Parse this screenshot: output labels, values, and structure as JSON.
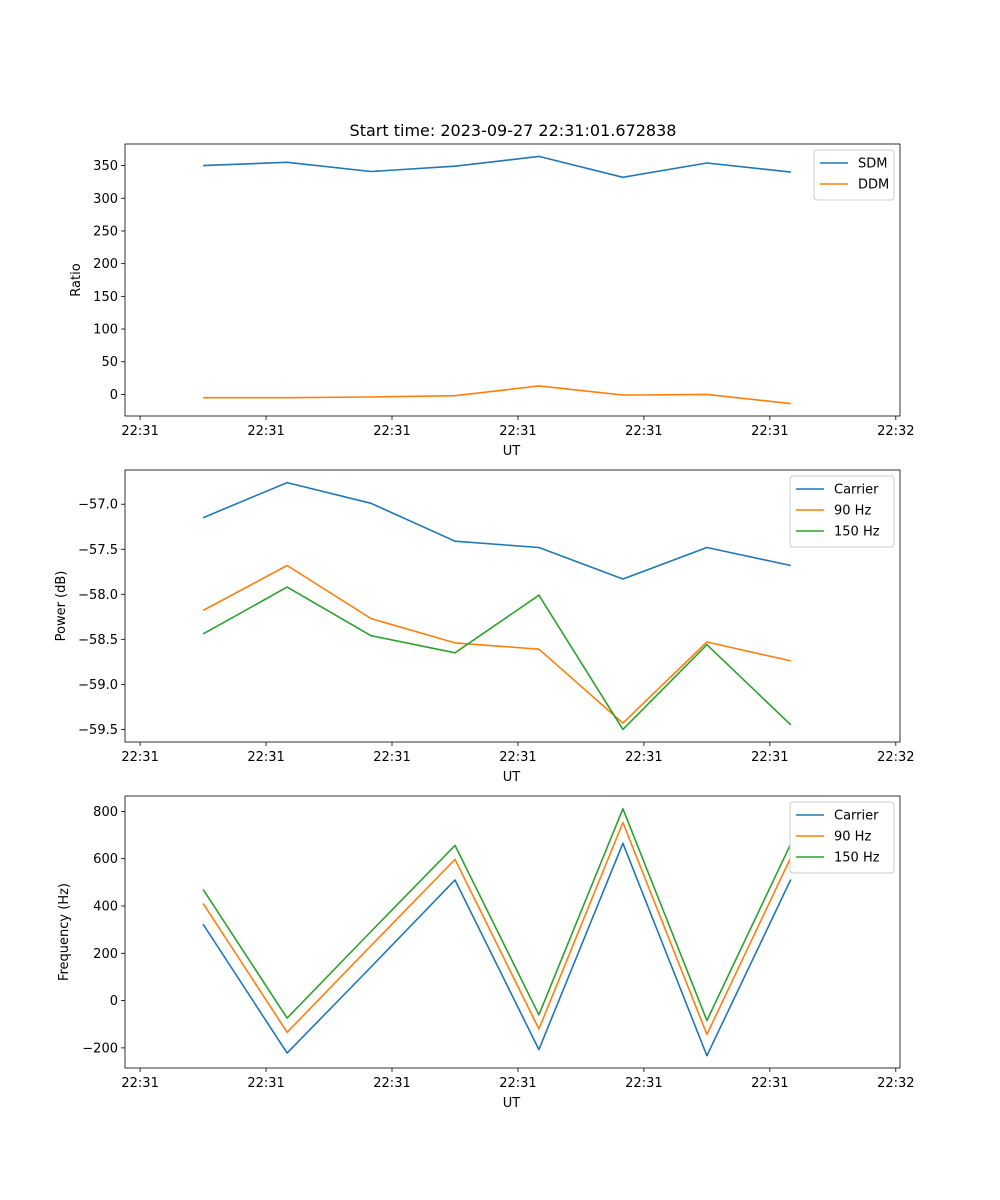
{
  "title": "Start time: 2023-09-27 22:31:01.672838",
  "colors": {
    "blue": "#1f77b4",
    "orange": "#ff7f0e",
    "green": "#2ca02c"
  },
  "chart_data": [
    {
      "type": "line",
      "ylabel": "Ratio",
      "xlabel": "UT",
      "x": [
        1,
        2,
        3,
        4,
        5,
        6,
        7,
        8
      ],
      "xlim": [
        0.07,
        9.3
      ],
      "xticks": [
        0.25,
        1.75,
        3.25,
        4.75,
        6.25,
        7.75,
        9.25
      ],
      "xtick_labels": [
        "22:31",
        "22:31",
        "22:31",
        "22:31",
        "22:31",
        "22:31",
        "22:32"
      ],
      "ylim": [
        -33,
        383
      ],
      "yticks": [
        0,
        50,
        100,
        150,
        200,
        250,
        300,
        350
      ],
      "ytick_labels": [
        "0",
        "50",
        "100",
        "150",
        "200",
        "250",
        "300",
        "350"
      ],
      "legend": "top-right",
      "series": [
        {
          "name": "SDM",
          "color": "#1f77b4",
          "values": [
            350,
            355,
            341,
            349,
            364,
            332,
            354,
            340
          ]
        },
        {
          "name": "DDM",
          "color": "#ff7f0e",
          "values": [
            -5,
            -5,
            -4,
            -2,
            13,
            -1,
            0,
            -14
          ]
        }
      ]
    },
    {
      "type": "line",
      "ylabel": "Power (dB)",
      "xlabel": "UT",
      "x": [
        1,
        2,
        3,
        4,
        5,
        6,
        7,
        8
      ],
      "xlim": [
        0.07,
        9.3
      ],
      "xticks": [
        0.25,
        1.75,
        3.25,
        4.75,
        6.25,
        7.75,
        9.25
      ],
      "xtick_labels": [
        "22:31",
        "22:31",
        "22:31",
        "22:31",
        "22:31",
        "22:31",
        "22:32"
      ],
      "ylim": [
        -59.64,
        -56.62
      ],
      "yticks": [
        -57.0,
        -57.5,
        -58.0,
        -58.5,
        -59.0,
        -59.5
      ],
      "ytick_labels": [
        "−57.0",
        "−57.5",
        "−58.0",
        "−58.5",
        "−59.0",
        "−59.5"
      ],
      "legend": "top-right",
      "series": [
        {
          "name": "Carrier",
          "color": "#1f77b4",
          "values": [
            -57.15,
            -56.76,
            -56.99,
            -57.41,
            -57.48,
            -57.83,
            -57.48,
            -57.68
          ]
        },
        {
          "name": "90 Hz",
          "color": "#ff7f0e",
          "values": [
            -58.18,
            -57.68,
            -58.27,
            -58.54,
            -58.61,
            -59.43,
            -58.53,
            -58.74
          ]
        },
        {
          "name": "150 Hz",
          "color": "#2ca02c",
          "values": [
            -58.44,
            -57.92,
            -58.46,
            -58.65,
            -58.01,
            -59.5,
            -58.56,
            -59.45
          ]
        }
      ]
    },
    {
      "type": "line",
      "ylabel": "Frequency (Hz)",
      "xlabel": "UT",
      "x": [
        1,
        2,
        3,
        4,
        5,
        6,
        7,
        8
      ],
      "xlim": [
        0.07,
        9.3
      ],
      "xticks": [
        0.25,
        1.75,
        3.25,
        4.75,
        6.25,
        7.75,
        9.25
      ],
      "xtick_labels": [
        "22:31",
        "22:31",
        "22:31",
        "22:31",
        "22:31",
        "22:31",
        "22:32"
      ],
      "ylim": [
        -285,
        865
      ],
      "yticks": [
        -200,
        0,
        200,
        400,
        600,
        800
      ],
      "ytick_labels": [
        "−200",
        "0",
        "200",
        "400",
        "600",
        "800"
      ],
      "legend": "top-right",
      "series": [
        {
          "name": "Carrier",
          "color": "#1f77b4",
          "values": [
            323,
            -222,
            142,
            510,
            -207,
            665,
            -233,
            512
          ]
        },
        {
          "name": "90 Hz",
          "color": "#ff7f0e",
          "values": [
            411,
            -134,
            232,
            597,
            -120,
            753,
            -143,
            605
          ]
        },
        {
          "name": "150 Hz",
          "color": "#2ca02c",
          "values": [
            470,
            -74,
            292,
            656,
            -60,
            811,
            -84,
            663
          ]
        }
      ]
    }
  ]
}
